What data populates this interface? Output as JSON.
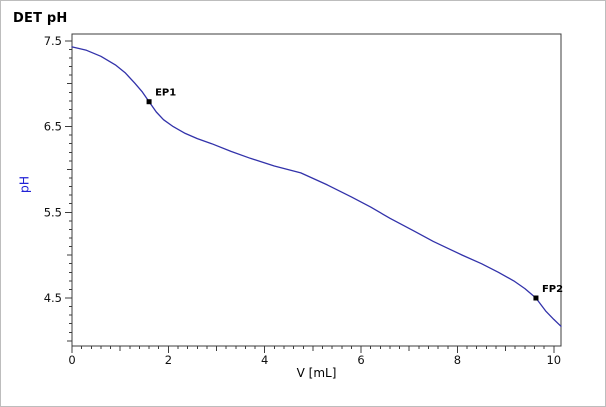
{
  "colors": {
    "curve": "#3232aa",
    "axis": "#3c3c3c",
    "tick_text": "#101010",
    "y_label": "#2121d6",
    "marker": "#000000",
    "annotation_text": "#000000",
    "background": "#ffffff",
    "frame": "#bdbdbd"
  },
  "chart_data": {
    "type": "line",
    "title": "DET pH",
    "xlabel": "V [mL]",
    "ylabel": "pH",
    "xlim": [
      0,
      10.15
    ],
    "ylim": [
      3.94,
      7.58
    ],
    "grid": false,
    "legend": "none",
    "x_major_tick_labels": [
      "0",
      "2",
      "4",
      "6",
      "8",
      "10"
    ],
    "x_major_tick_values": [
      0,
      2,
      4,
      6,
      8,
      10
    ],
    "x_medium_step": 1,
    "x_minor_step": 0.2,
    "y_major_tick_labels": [
      "7.5",
      "6.5",
      "5.5",
      "4.5"
    ],
    "y_major_tick_values": [
      7.5,
      6.5,
      5.5,
      4.5
    ],
    "y_medium_step": 0.5,
    "y_minor_step": 0.1,
    "series": [
      {
        "name": "pH",
        "x": [
          0,
          0.3,
          0.6,
          0.9,
          1.1,
          1.3,
          1.45,
          1.6,
          1.75,
          1.9,
          2.1,
          2.35,
          2.6,
          2.9,
          3.3,
          3.7,
          4.2,
          4.75,
          5.3,
          5.8,
          6.2,
          6.6,
          7.1,
          7.5,
          7.8,
          8.1,
          8.5,
          8.85,
          9.17,
          9.4,
          9.63,
          9.83,
          10.0,
          10.15
        ],
        "y": [
          7.43,
          7.39,
          7.32,
          7.22,
          7.13,
          7.01,
          6.91,
          6.79,
          6.67,
          6.58,
          6.5,
          6.42,
          6.36,
          6.3,
          6.21,
          6.13,
          6.04,
          5.96,
          5.82,
          5.68,
          5.56,
          5.43,
          5.28,
          5.16,
          5.08,
          5.0,
          4.9,
          4.8,
          4.7,
          4.61,
          4.5,
          4.35,
          4.25,
          4.17
        ]
      }
    ],
    "annotations": [
      {
        "label": "EP1",
        "x": 1.6,
        "y": 6.79
      },
      {
        "label": "FP2",
        "x": 9.63,
        "y": 4.5
      }
    ]
  }
}
